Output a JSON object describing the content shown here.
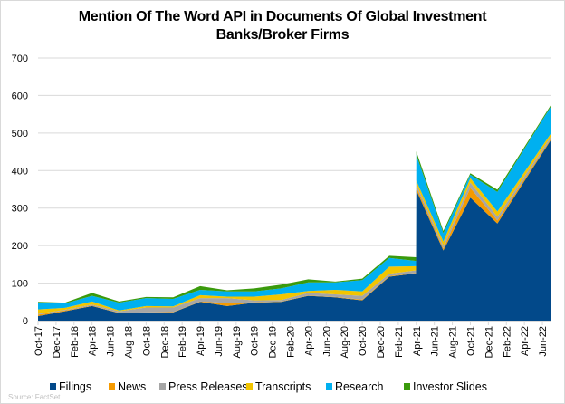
{
  "chart_data": {
    "type": "area",
    "stacked": true,
    "title_line1": "Mention Of The Word API in Documents Of Global Investment",
    "title_line2": "Banks/Broker Firms",
    "xlabel": "",
    "ylabel": "",
    "ylim": [
      0,
      700
    ],
    "yticks": [
      0,
      100,
      200,
      300,
      400,
      500,
      600,
      700
    ],
    "xlim": [
      "2017-10-01",
      "2022-07-01"
    ],
    "xtick_labels": [
      "Oct-17",
      "Dec-17",
      "Feb-18",
      "Apr-18",
      "Jun-18",
      "Aug-18",
      "Oct-18",
      "Dec-18",
      "Feb-19",
      "Apr-19",
      "Jun-19",
      "Aug-19",
      "Oct-19",
      "Dec-19",
      "Feb-20",
      "Apr-20",
      "Jun-20",
      "Aug-20",
      "Oct-20",
      "Dec-20",
      "Feb-21",
      "Apr-21",
      "Jun-21",
      "Aug-21",
      "Oct-21",
      "Dec-21",
      "Feb-22",
      "Apr-22",
      "Jun-22"
    ],
    "grid": "horizontal",
    "legend_position": "bottom",
    "x": [
      "2017-10-01",
      "2018-01-01",
      "2018-04-01",
      "2018-07-01",
      "2018-10-01",
      "2019-01-01",
      "2019-04-01",
      "2019-07-01",
      "2019-10-01",
      "2020-01-01",
      "2020-04-01",
      "2020-07-01",
      "2020-10-01",
      "2021-01-01",
      "2021-03-31",
      "2021-04-01",
      "2021-07-01",
      "2021-10-01",
      "2022-01-01",
      "2022-04-01",
      "2022-07-01"
    ],
    "series": [
      {
        "name": "Filings",
        "color": "#02498a",
        "values": [
          12,
          25,
          39,
          20,
          20,
          22,
          50,
          39,
          48,
          50,
          66,
          62,
          54,
          117,
          126,
          348,
          187,
          328,
          259,
          372,
          484
        ]
      },
      {
        "name": "News",
        "color": "#f59a00",
        "values": [
          4,
          2,
          1,
          1,
          2,
          1,
          1,
          8,
          1,
          1,
          1,
          1,
          2,
          2,
          1,
          8,
          5,
          26,
          8,
          5,
          3
        ]
      },
      {
        "name": "Press Releases",
        "color": "#a6a6a6",
        "values": [
          2,
          2,
          3,
          4,
          13,
          12,
          9,
          13,
          5,
          4,
          7,
          7,
          10,
          6,
          7,
          8,
          7,
          14,
          10,
          8,
          6
        ]
      },
      {
        "name": "Transcripts",
        "color": "#f2c500",
        "values": [
          12,
          5,
          8,
          2,
          4,
          3,
          8,
          4,
          10,
          15,
          5,
          12,
          12,
          19,
          11,
          9,
          12,
          12,
          14,
          11,
          8
        ]
      },
      {
        "name": "Research",
        "color": "#00b0f0",
        "values": [
          17,
          12,
          15,
          21,
          21,
          20,
          14,
          14,
          14,
          16,
          23,
          20,
          30,
          23,
          14,
          69,
          22,
          9,
          52,
          62,
          72
        ]
      },
      {
        "name": "Investor Slides",
        "color": "#3a9a0c",
        "values": [
          3,
          2,
          8,
          3,
          3,
          4,
          10,
          3,
          8,
          10,
          8,
          2,
          4,
          6,
          10,
          9,
          6,
          4,
          6,
          5,
          4
        ]
      }
    ],
    "source": "Source:  FactSet"
  }
}
